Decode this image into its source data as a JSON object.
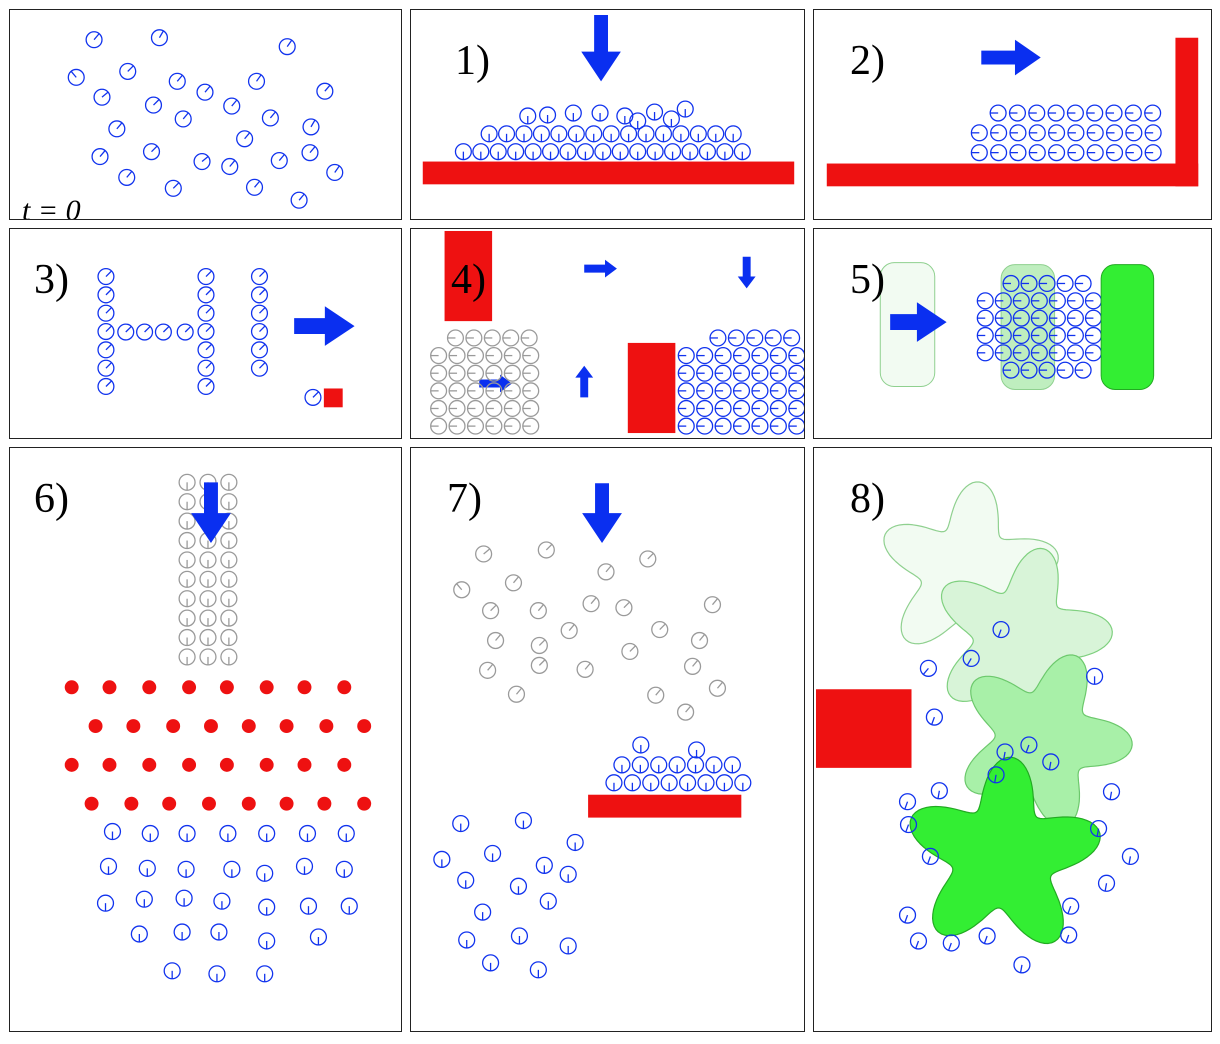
{
  "colors": {
    "particle": "#1133ee",
    "ghost_particle": "#9a9a9a",
    "obstacle": "#ee1111",
    "arrow": "#0a2ff0",
    "green_solid": "#33ee33",
    "green_faint": "#e6f7e6",
    "green_mid": "#bfeebf",
    "green_light": "#d8f4d8",
    "green_strong": "#a8f0a8"
  },
  "icons": [
    "particle-with-orientation-tick",
    "arrow",
    "red-wall",
    "green-blob",
    "green-star"
  ],
  "panels": [
    {
      "id": "p0",
      "label": "",
      "time_label": "t = 0"
    },
    {
      "id": "p1",
      "label": "1)"
    },
    {
      "id": "p2",
      "label": "2)"
    },
    {
      "id": "p3",
      "label": "3)"
    },
    {
      "id": "p4",
      "label": "4)"
    },
    {
      "id": "p5",
      "label": "5)"
    },
    {
      "id": "p6",
      "label": "6)"
    },
    {
      "id": "p7",
      "label": "7)"
    },
    {
      "id": "p8",
      "label": "8)"
    }
  ]
}
